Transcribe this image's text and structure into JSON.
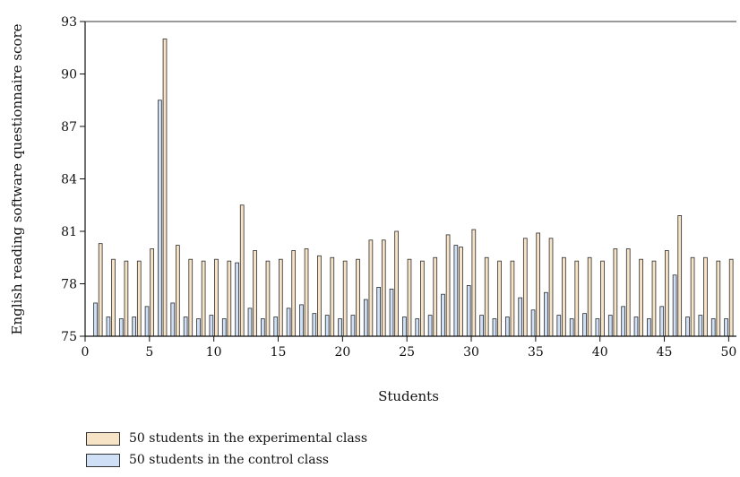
{
  "chart_data": {
    "type": "bar",
    "xlabel": "Students",
    "ylabel": "English reading software questionnaire score",
    "ylim": [
      75,
      93
    ],
    "xlim": [
      0,
      50.6
    ],
    "yticks": [
      75,
      78,
      81,
      84,
      87,
      90,
      93
    ],
    "xticks": [
      0,
      5,
      10,
      15,
      20,
      25,
      30,
      35,
      40,
      45,
      50
    ],
    "categories": [
      1,
      2,
      3,
      4,
      5,
      6,
      7,
      8,
      9,
      10,
      11,
      12,
      13,
      14,
      15,
      16,
      17,
      18,
      19,
      20,
      21,
      22,
      23,
      24,
      25,
      26,
      27,
      28,
      29,
      30,
      31,
      32,
      33,
      34,
      35,
      36,
      37,
      38,
      39,
      40,
      41,
      42,
      43,
      44,
      45,
      46,
      47,
      48,
      49,
      50
    ],
    "series": [
      {
        "name": "50 students in the control class",
        "color": "#cfdff5",
        "values": [
          76.9,
          76.1,
          76.0,
          76.1,
          76.7,
          88.5,
          76.9,
          76.1,
          76.0,
          76.2,
          76.0,
          79.2,
          76.6,
          76.0,
          76.1,
          76.6,
          76.8,
          76.3,
          76.2,
          76.0,
          76.2,
          77.1,
          77.8,
          77.7,
          76.1,
          76.0,
          76.2,
          77.4,
          80.2,
          77.9,
          76.2,
          76.0,
          76.1,
          77.2,
          76.5,
          77.5,
          76.2,
          76.0,
          76.3,
          76.0,
          76.2,
          76.7,
          76.1,
          76.0,
          76.7,
          78.5,
          76.1,
          76.2,
          76.0,
          76.0
        ]
      },
      {
        "name": "50 students in the experimental class",
        "color": "#f7e3c6",
        "values": [
          80.3,
          79.4,
          79.3,
          79.3,
          80.0,
          92.0,
          80.2,
          79.4,
          79.3,
          79.4,
          79.3,
          82.5,
          79.9,
          79.3,
          79.4,
          79.9,
          80.0,
          79.6,
          79.5,
          79.3,
          79.4,
          80.5,
          80.5,
          81.0,
          79.4,
          79.3,
          79.5,
          80.8,
          80.1,
          81.1,
          79.5,
          79.3,
          79.3,
          80.6,
          80.9,
          80.6,
          79.5,
          79.3,
          79.5,
          79.3,
          80.0,
          80.0,
          79.4,
          79.3,
          79.9,
          81.9,
          79.5,
          79.5,
          79.3,
          79.4
        ]
      }
    ],
    "legend_position": "bottom-left"
  }
}
